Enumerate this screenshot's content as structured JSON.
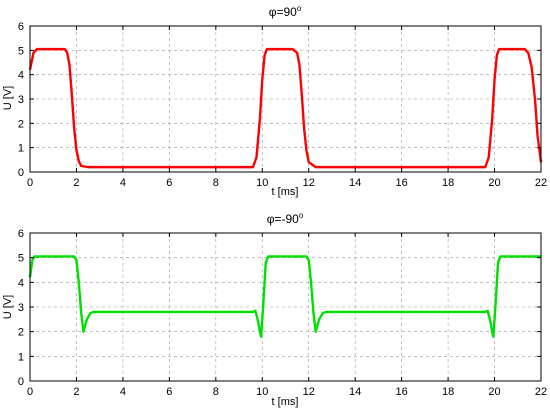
{
  "chart_data": [
    {
      "type": "line",
      "title_main": "φ=90",
      "title_sup": "o",
      "xlabel": "t [ms]",
      "ylabel": "U [V]",
      "xlim": [
        0,
        22
      ],
      "ylim": [
        0,
        6
      ],
      "xticks": [
        0,
        2,
        4,
        6,
        8,
        10,
        12,
        14,
        16,
        18,
        20,
        22
      ],
      "yticks": [
        0,
        1,
        2,
        3,
        4,
        5,
        6
      ],
      "grid": true,
      "series": [
        {
          "color": "#ff0000",
          "x": [
            0,
            0.15,
            0.3,
            1.5,
            1.6,
            1.7,
            1.8,
            1.9,
            2.0,
            2.1,
            2.2,
            2.5,
            9.6,
            9.75,
            9.9,
            10.0,
            10.1,
            10.2,
            11.3,
            11.5,
            11.6,
            11.7,
            11.8,
            11.9,
            12.0,
            12.3,
            19.6,
            19.75,
            19.9,
            20.0,
            20.1,
            20.2,
            21.3,
            21.45,
            21.6,
            21.75,
            21.85,
            22.0
          ],
          "y": [
            4.2,
            4.9,
            5.05,
            5.05,
            4.9,
            4.4,
            3.2,
            1.8,
            0.9,
            0.45,
            0.25,
            0.2,
            0.2,
            0.6,
            2.2,
            3.8,
            4.8,
            5.05,
            5.05,
            4.9,
            4.4,
            3.2,
            1.8,
            0.9,
            0.4,
            0.2,
            0.2,
            0.6,
            2.2,
            3.8,
            4.8,
            5.05,
            5.05,
            4.9,
            4.3,
            2.9,
            1.5,
            0.4
          ]
        }
      ]
    },
    {
      "type": "line",
      "title_main": "φ=-90",
      "title_sup": "o",
      "xlabel": "t [ms]",
      "ylabel": "U [V]",
      "xlim": [
        0,
        22
      ],
      "ylim": [
        0,
        6
      ],
      "xticks": [
        0,
        2,
        4,
        6,
        8,
        10,
        12,
        14,
        16,
        18,
        20,
        22
      ],
      "yticks": [
        0,
        1,
        2,
        3,
        4,
        5,
        6
      ],
      "grid": true,
      "series": [
        {
          "color": "#00e000",
          "x": [
            0,
            0.1,
            0.2,
            1.9,
            2.0,
            2.1,
            2.2,
            2.3,
            2.45,
            2.6,
            2.75,
            9.6,
            9.7,
            9.8,
            9.9,
            9.95,
            10.05,
            10.15,
            10.25,
            11.9,
            12.0,
            12.1,
            12.2,
            12.3,
            12.45,
            12.6,
            12.75,
            19.6,
            19.7,
            19.8,
            19.9,
            19.95,
            20.05,
            20.15,
            20.25,
            22.0
          ],
          "y": [
            4.2,
            4.9,
            5.05,
            5.05,
            4.9,
            4.0,
            2.8,
            2.0,
            2.5,
            2.75,
            2.8,
            2.8,
            2.85,
            2.5,
            2.0,
            1.8,
            3.2,
            4.8,
            5.05,
            5.05,
            4.9,
            4.0,
            2.8,
            2.0,
            2.5,
            2.75,
            2.8,
            2.8,
            2.85,
            2.5,
            2.0,
            1.8,
            3.2,
            4.8,
            5.05,
            5.05
          ]
        }
      ]
    }
  ]
}
